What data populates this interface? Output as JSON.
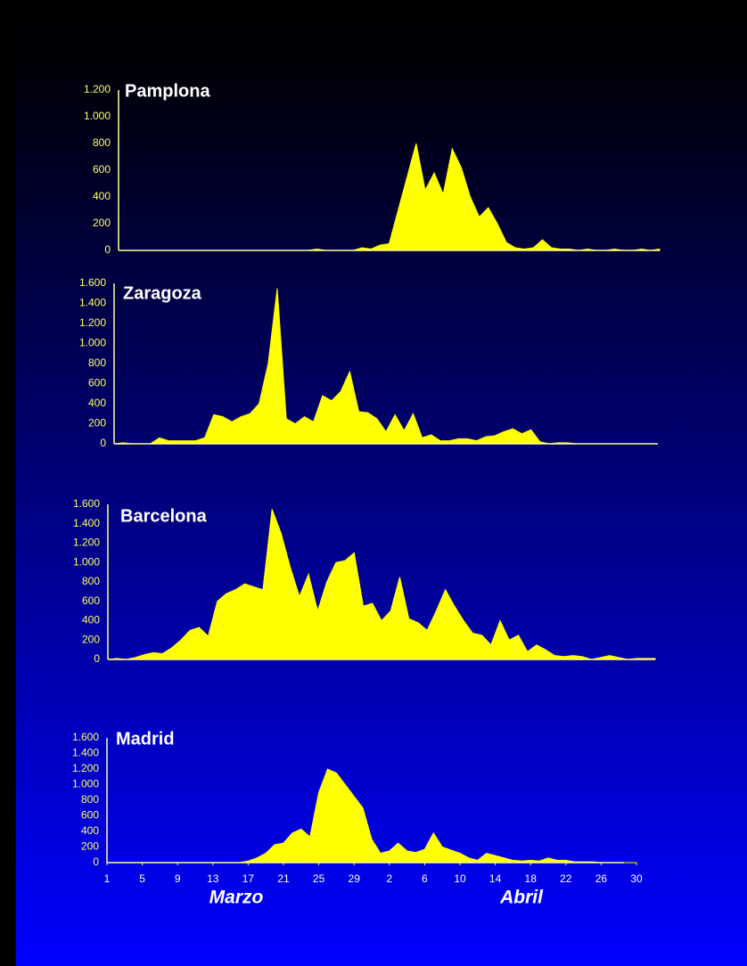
{
  "chart_data": [
    {
      "type": "area",
      "title": "Pamplona",
      "color": "#ffff00",
      "x": [
        1,
        2,
        3,
        4,
        5,
        6,
        7,
        8,
        9,
        10,
        11,
        12,
        13,
        14,
        15,
        16,
        17,
        18,
        19,
        20,
        21,
        22,
        23,
        24,
        25,
        26,
        27,
        28,
        29,
        30,
        31,
        32,
        33,
        34,
        35,
        36,
        37,
        38,
        39,
        40,
        41,
        42,
        43,
        44,
        45,
        46,
        47,
        48,
        49,
        50,
        51,
        52,
        53,
        54,
        55,
        56,
        57,
        58,
        59,
        60,
        61
      ],
      "values": [
        0,
        0,
        0,
        0,
        0,
        0,
        0,
        0,
        0,
        0,
        0,
        0,
        0,
        0,
        0,
        0,
        0,
        0,
        0,
        0,
        0,
        0,
        10,
        0,
        0,
        0,
        0,
        20,
        10,
        40,
        50,
        300,
        550,
        800,
        450,
        580,
        420,
        760,
        620,
        400,
        250,
        320,
        200,
        60,
        20,
        10,
        20,
        80,
        20,
        10,
        10,
        0,
        10,
        0,
        0,
        10,
        0,
        0,
        10,
        0,
        10
      ],
      "xlim": [
        1,
        61
      ],
      "ylim": [
        0,
        1200
      ],
      "yticks": [
        0,
        200,
        400,
        600,
        800,
        {
          "value": 1000,
          "label": "1.000"
        },
        {
          "value": 1200,
          "label": "1.200"
        }
      ]
    },
    {
      "type": "area",
      "title": "Zaragoza",
      "color": "#ffff00",
      "x": [
        1,
        2,
        3,
        4,
        5,
        6,
        7,
        8,
        9,
        10,
        11,
        12,
        13,
        14,
        15,
        16,
        17,
        18,
        19,
        20,
        21,
        22,
        23,
        24,
        25,
        26,
        27,
        28,
        29,
        30,
        31,
        32,
        33,
        34,
        35,
        36,
        37,
        38,
        39,
        40,
        41,
        42,
        43,
        44,
        45,
        46,
        47,
        48,
        49,
        50,
        51,
        52,
        53,
        54,
        55,
        56,
        57,
        58,
        59,
        60,
        61
      ],
      "values": [
        0,
        10,
        0,
        0,
        0,
        60,
        30,
        30,
        30,
        30,
        60,
        290,
        270,
        220,
        270,
        300,
        400,
        800,
        1550,
        250,
        200,
        270,
        220,
        480,
        430,
        520,
        720,
        320,
        310,
        250,
        120,
        290,
        130,
        300,
        60,
        90,
        30,
        30,
        50,
        50,
        30,
        70,
        80,
        120,
        150,
        100,
        140,
        20,
        0,
        10,
        10,
        0,
        0,
        0,
        0,
        0,
        0,
        0,
        0,
        0,
        0
      ],
      "xlim": [
        1,
        61
      ],
      "ylim": [
        0,
        1600
      ],
      "yticks": [
        0,
        200,
        400,
        600,
        800,
        {
          "value": 1000,
          "label": "1.000"
        },
        {
          "value": 1200,
          "label": "1.200"
        },
        {
          "value": 1400,
          "label": "1.400"
        },
        {
          "value": 1600,
          "label": "1.600"
        }
      ]
    },
    {
      "type": "area",
      "title": "Barcelona",
      "color": "#ffff00",
      "x": [
        1,
        2,
        3,
        4,
        5,
        6,
        7,
        8,
        9,
        10,
        11,
        12,
        13,
        14,
        15,
        16,
        17,
        18,
        19,
        20,
        21,
        22,
        23,
        24,
        25,
        26,
        27,
        28,
        29,
        30,
        31,
        32,
        33,
        34,
        35,
        36,
        37,
        38,
        39,
        40,
        41,
        42,
        43,
        44,
        45,
        46,
        47,
        48,
        49,
        50,
        51,
        52,
        53,
        54,
        55,
        56,
        57,
        58,
        59,
        60,
        61
      ],
      "values": [
        0,
        10,
        0,
        20,
        50,
        70,
        60,
        120,
        200,
        300,
        330,
        240,
        600,
        680,
        720,
        780,
        750,
        720,
        1550,
        1300,
        950,
        650,
        880,
        500,
        800,
        1000,
        1020,
        1100,
        550,
        580,
        400,
        500,
        850,
        420,
        380,
        300,
        500,
        720,
        550,
        400,
        270,
        250,
        150,
        400,
        200,
        250,
        80,
        150,
        100,
        40,
        30,
        40,
        30,
        0,
        20,
        40,
        20,
        0,
        10,
        10,
        10
      ],
      "xlim": [
        1,
        61
      ],
      "ylim": [
        0,
        1600
      ],
      "yticks": [
        0,
        200,
        400,
        600,
        800,
        {
          "value": 1000,
          "label": "1.000"
        },
        {
          "value": 1200,
          "label": "1.200"
        },
        {
          "value": 1400,
          "label": "1.400"
        },
        {
          "value": 1600,
          "label": "1.600"
        }
      ]
    },
    {
      "type": "area",
      "title": "Madrid",
      "color": "#ffff00",
      "x": [
        1,
        2,
        3,
        4,
        5,
        6,
        7,
        8,
        9,
        10,
        11,
        12,
        13,
        14,
        15,
        16,
        17,
        18,
        19,
        20,
        21,
        22,
        23,
        24,
        25,
        26,
        27,
        28,
        29,
        30,
        31,
        32,
        33,
        34,
        35,
        36,
        37,
        38,
        39,
        40,
        41,
        42,
        43,
        44,
        45,
        46,
        47,
        48,
        49,
        50,
        51,
        52,
        53,
        54,
        55,
        56,
        57,
        58,
        59,
        60,
        61
      ],
      "values": [
        0,
        0,
        0,
        0,
        0,
        0,
        0,
        0,
        0,
        0,
        0,
        0,
        0,
        0,
        0,
        0,
        20,
        60,
        120,
        230,
        250,
        380,
        430,
        330,
        900,
        1200,
        1150,
        1000,
        850,
        700,
        300,
        120,
        150,
        250,
        150,
        130,
        170,
        380,
        200,
        160,
        120,
        60,
        30,
        120,
        90,
        60,
        30,
        20,
        30,
        20,
        60,
        30,
        30,
        10,
        10,
        10,
        0,
        0,
        0,
        0,
        0
      ],
      "xlim": [
        1,
        61
      ],
      "ylim": [
        0,
        1600
      ],
      "yticks": [
        0,
        200,
        400,
        600,
        800,
        {
          "value": 1000,
          "label": "1.000"
        },
        {
          "value": 1200,
          "label": "1.200"
        },
        {
          "value": 1400,
          "label": "1.400"
        },
        {
          "value": 1600,
          "label": "1.600"
        }
      ],
      "xticks": [
        1,
        5,
        9,
        13,
        17,
        21,
        25,
        29,
        {
          "value": 33,
          "label": "2"
        },
        {
          "value": 37,
          "label": "6"
        },
        {
          "value": 41,
          "label": "10"
        },
        {
          "value": 45,
          "label": "14"
        },
        {
          "value": 49,
          "label": "18"
        },
        {
          "value": 53,
          "label": "22"
        },
        {
          "value": 57,
          "label": "26"
        },
        {
          "value": 61,
          "label": "30"
        }
      ],
      "annotations": [
        "Marzo",
        "Abril"
      ]
    }
  ]
}
